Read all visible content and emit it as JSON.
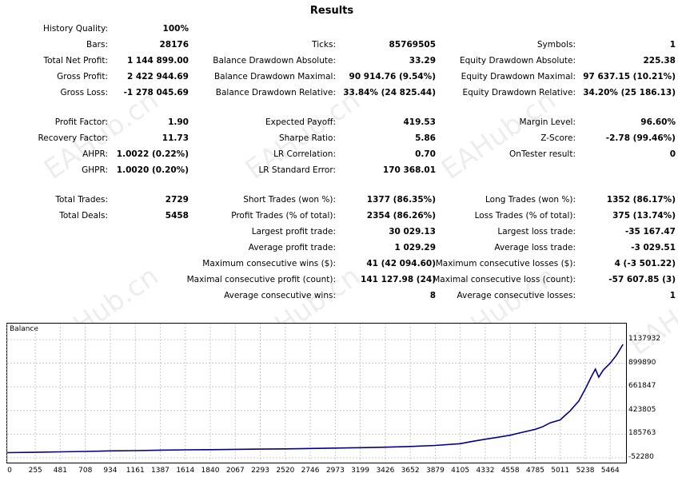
{
  "title": "Results",
  "stats": {
    "history_quality": {
      "label": "History Quality:",
      "value": "100%"
    },
    "bars": {
      "label": "Bars:",
      "value": "28176"
    },
    "ticks": {
      "label": "Ticks:",
      "value": "85769505"
    },
    "symbols": {
      "label": "Symbols:",
      "value": "1"
    },
    "total_net_profit": {
      "label": "Total Net Profit:",
      "value": "1 144 899.00"
    },
    "balance_dd_abs": {
      "label": "Balance Drawdown Absolute:",
      "value": "33.29"
    },
    "equity_dd_abs": {
      "label": "Equity Drawdown Absolute:",
      "value": "225.38"
    },
    "gross_profit": {
      "label": "Gross Profit:",
      "value": "2 422 944.69"
    },
    "balance_dd_max": {
      "label": "Balance Drawdown Maximal:",
      "value": "90 914.76 (9.54%)"
    },
    "equity_dd_max": {
      "label": "Equity Drawdown Maximal:",
      "value": "97 637.15 (10.21%)"
    },
    "gross_loss": {
      "label": "Gross Loss:",
      "value": "-1 278 045.69"
    },
    "balance_dd_rel": {
      "label": "Balance Drawdown Relative:",
      "value": "33.84% (24 825.44)"
    },
    "equity_dd_rel": {
      "label": "Equity Drawdown Relative:",
      "value": "34.20% (25 186.13)"
    },
    "profit_factor": {
      "label": "Profit Factor:",
      "value": "1.90"
    },
    "expected_payoff": {
      "label": "Expected Payoff:",
      "value": "419.53"
    },
    "margin_level": {
      "label": "Margin Level:",
      "value": "96.60%"
    },
    "recovery_factor": {
      "label": "Recovery Factor:",
      "value": "11.73"
    },
    "sharpe_ratio": {
      "label": "Sharpe Ratio:",
      "value": "5.86"
    },
    "z_score": {
      "label": "Z-Score:",
      "value": "-2.78 (99.46%)"
    },
    "ahpr": {
      "label": "AHPR:",
      "value": "1.0022 (0.22%)"
    },
    "lr_correlation": {
      "label": "LR Correlation:",
      "value": "0.70"
    },
    "ontester_result": {
      "label": "OnTester result:",
      "value": "0"
    },
    "ghpr": {
      "label": "GHPR:",
      "value": "1.0020 (0.20%)"
    },
    "lr_std_error": {
      "label": "LR Standard Error:",
      "value": "170 368.01"
    },
    "total_trades": {
      "label": "Total Trades:",
      "value": "2729"
    },
    "short_trades": {
      "label": "Short Trades (won %):",
      "value": "1377 (86.35%)"
    },
    "long_trades": {
      "label": "Long Trades (won %):",
      "value": "1352 (86.17%)"
    },
    "total_deals": {
      "label": "Total Deals:",
      "value": "5458"
    },
    "profit_trades": {
      "label": "Profit Trades (% of total):",
      "value": "2354 (86.26%)"
    },
    "loss_trades": {
      "label": "Loss Trades (% of total):",
      "value": "375 (13.74%)"
    },
    "largest_profit": {
      "label": "Largest profit trade:",
      "value": "30 029.13"
    },
    "largest_loss": {
      "label": "Largest loss trade:",
      "value": "-35 167.47"
    },
    "avg_profit": {
      "label": "Average profit trade:",
      "value": "1 029.29"
    },
    "avg_loss": {
      "label": "Average loss trade:",
      "value": "-3 029.51"
    },
    "max_consec_wins": {
      "label": "Maximum consecutive wins ($):",
      "value": "41 (42 094.60)"
    },
    "max_consec_losses": {
      "label": "Maximum consecutive losses ($):",
      "value": "4 (-3 501.22)"
    },
    "maximal_consec_profit": {
      "label": "Maximal consecutive profit (count):",
      "value": "141 127.98 (24)"
    },
    "maximal_consec_loss": {
      "label": "Maximal consecutive loss (count):",
      "value": "-57 607.85 (3)"
    },
    "avg_consec_wins": {
      "label": "Average consecutive wins:",
      "value": "8"
    },
    "avg_consec_losses": {
      "label": "Average consecutive losses:",
      "value": "1"
    }
  },
  "watermark": "EAHub.cn",
  "chart_data": {
    "type": "line",
    "title": "Balance",
    "xlabel": "",
    "ylabel": "",
    "x_ticks": [
      "0",
      "255",
      "481",
      "708",
      "934",
      "1161",
      "1387",
      "1614",
      "1840",
      "2067",
      "2293",
      "2520",
      "2746",
      "2973",
      "3199",
      "3426",
      "3652",
      "3879",
      "4105",
      "4332",
      "4558",
      "4785",
      "5011",
      "5238",
      "5464"
    ],
    "y_ticks": [
      "1137932",
      "899890",
      "661847",
      "423805",
      "185763",
      "-52280"
    ],
    "ylim": [
      -52280,
      1137932
    ],
    "xlim": [
      0,
      5600
    ],
    "grid": true,
    "color": "#00008b",
    "series": [
      {
        "x": [
          0,
          255,
          481,
          708,
          934,
          1161,
          1387,
          1614,
          1840,
          2067,
          2293,
          2520,
          2746,
          2973,
          3199,
          3426,
          3652,
          3879,
          4105,
          4200,
          4332,
          4450,
          4558,
          4650,
          4785,
          4850,
          4920,
          5011,
          5050,
          5100,
          5180,
          5238,
          5300,
          5330,
          5360,
          5400,
          5464,
          5520,
          5580
        ],
        "y": [
          0,
          3000,
          8000,
          12000,
          18000,
          20000,
          25000,
          28000,
          30000,
          33000,
          35000,
          38000,
          42000,
          46000,
          50000,
          55000,
          62000,
          72000,
          90000,
          110000,
          135000,
          155000,
          175000,
          200000,
          235000,
          260000,
          300000,
          330000,
          370000,
          420000,
          520000,
          640000,
          780000,
          840000,
          760000,
          830000,
          900000,
          980000,
          1090000
        ]
      }
    ]
  }
}
